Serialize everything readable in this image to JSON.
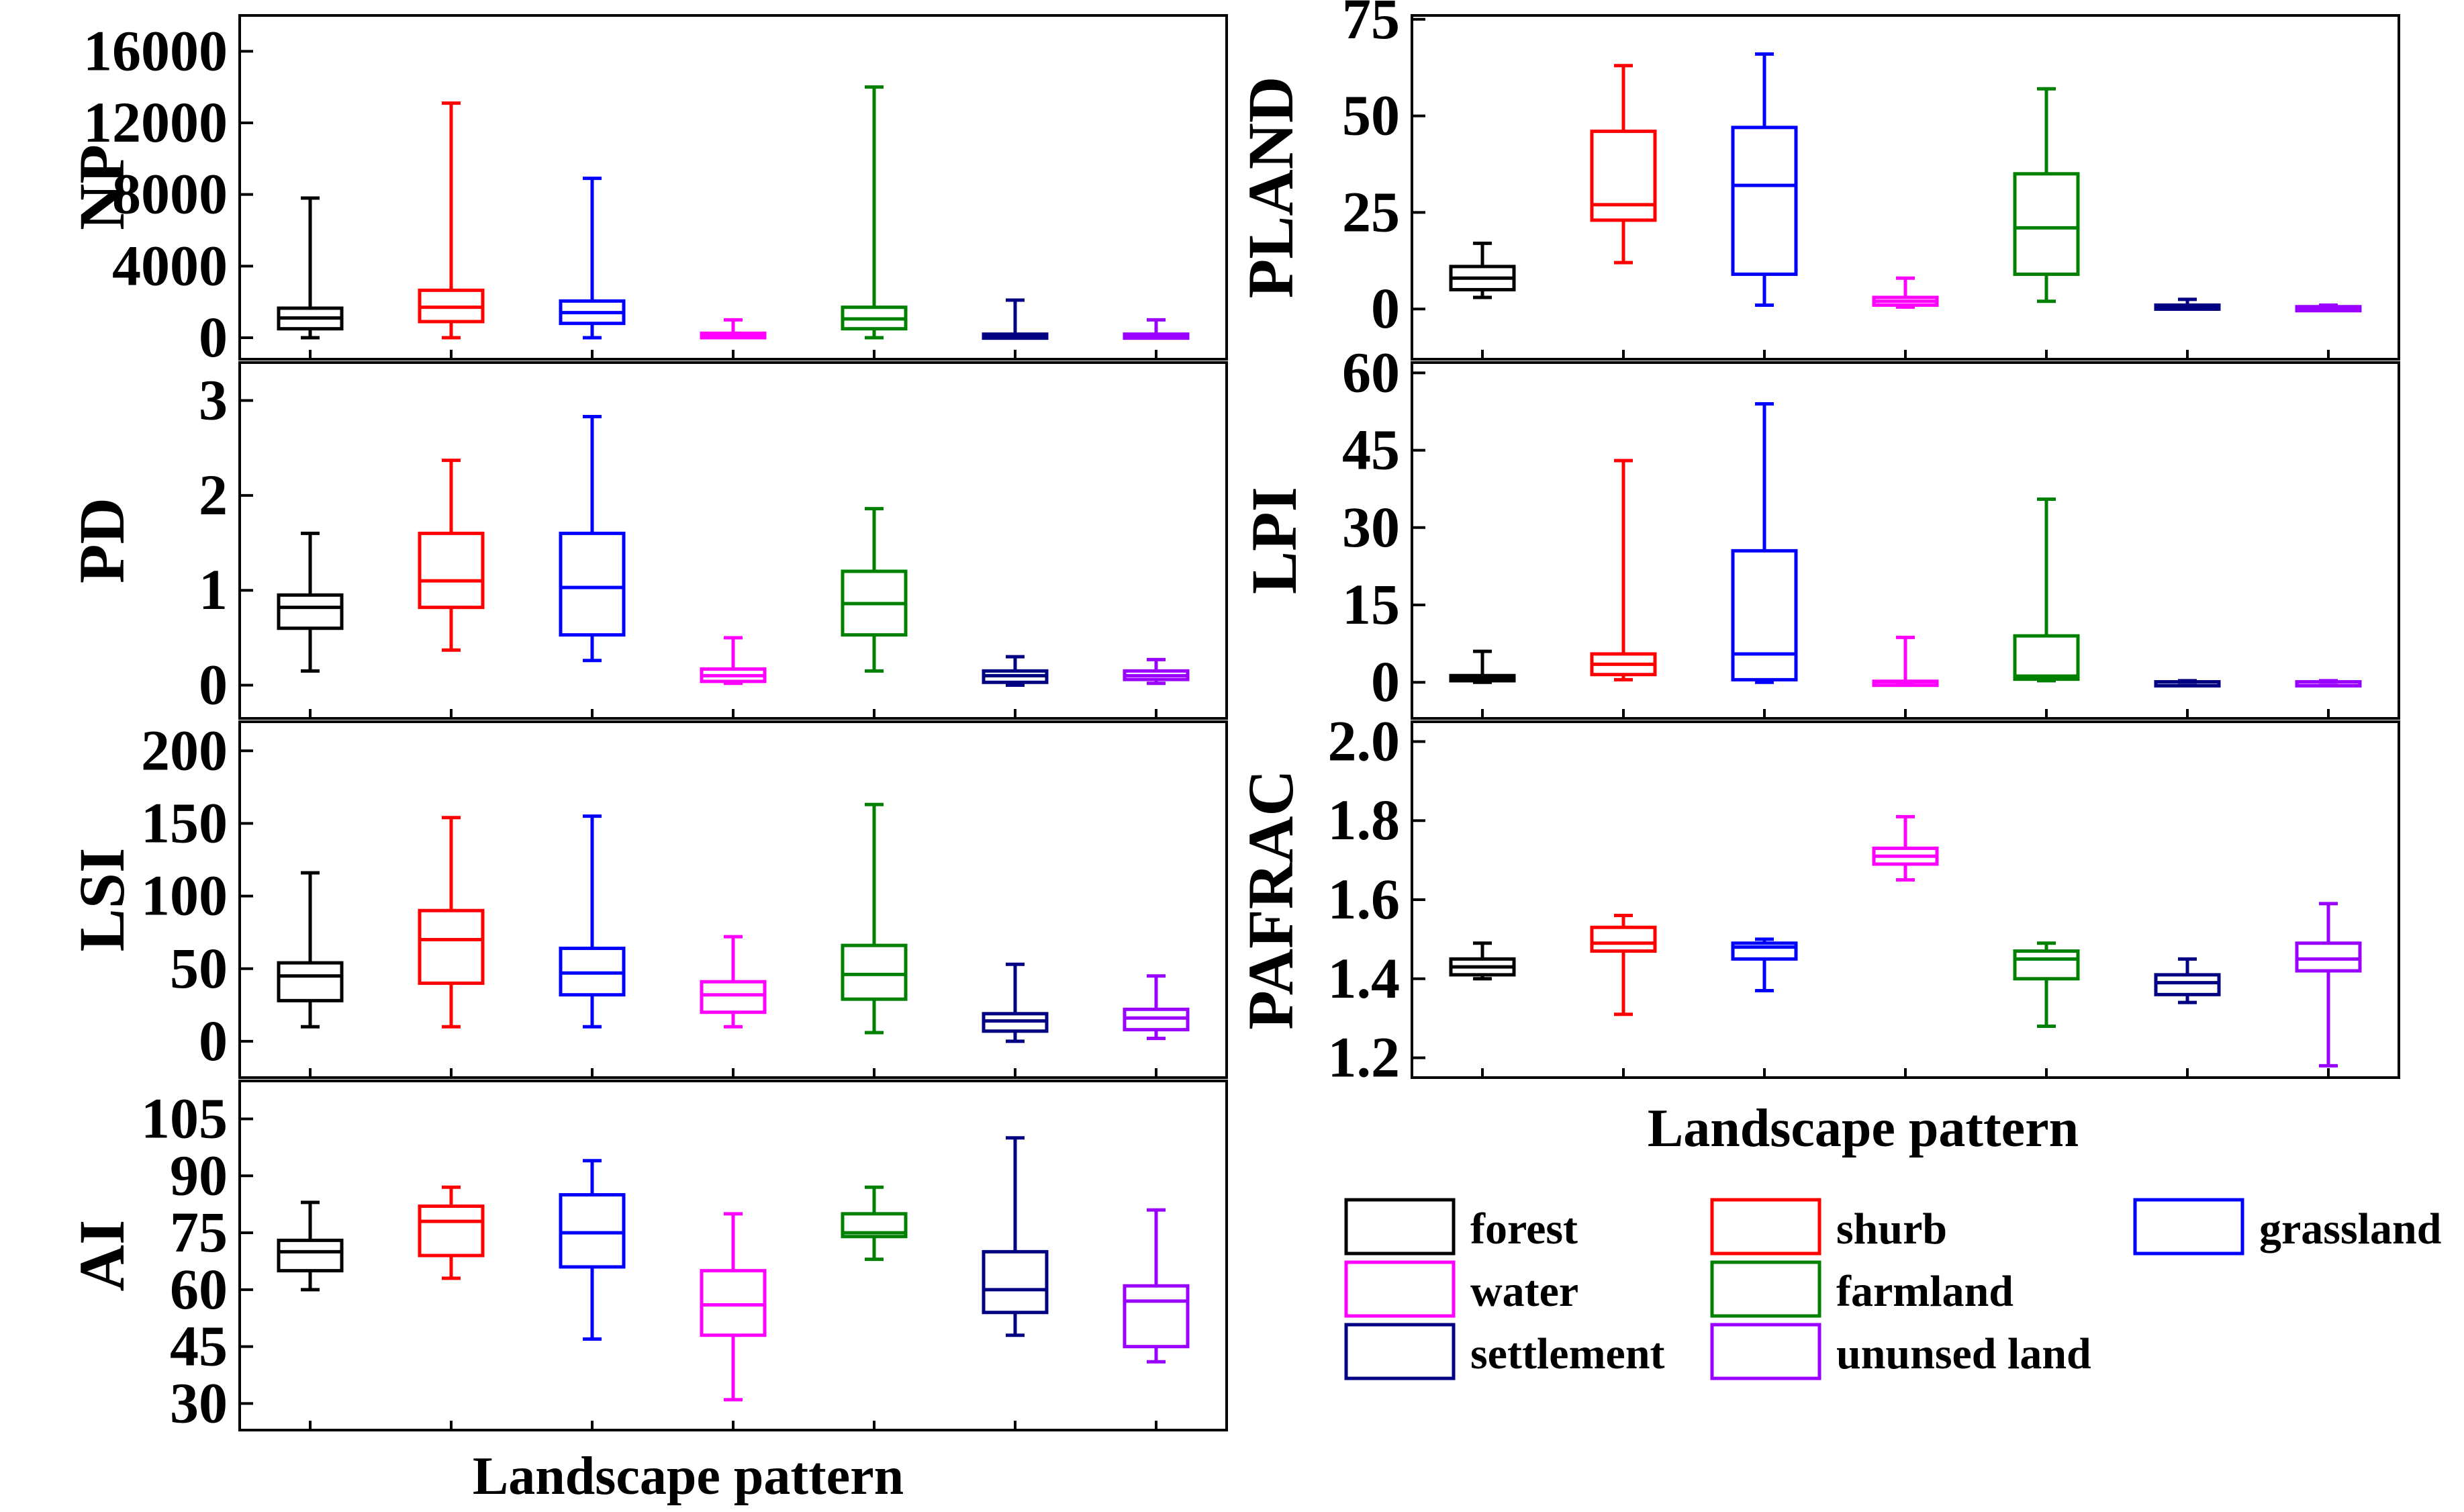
{
  "categories": [
    "forest",
    "shurb",
    "grassland",
    "water",
    "farmland",
    "settlement",
    "ununsed land"
  ],
  "colors": {
    "forest": "#000000",
    "shurb": "#ff0000",
    "grassland": "#0000ff",
    "water": "#ff00ff",
    "farmland": "#008000",
    "settlement": "#000080",
    "ununsed land": "#9900ff"
  },
  "legend": {
    "entries": [
      "forest",
      "shurb",
      "grassland",
      "water",
      "farmland",
      "settlement",
      "ununsed land"
    ]
  },
  "chart_data": [
    {
      "type": "box",
      "title": "",
      "ylabel": "NP",
      "xlabel": "",
      "ylim": [
        -1200,
        18000
      ],
      "yticks": [
        0,
        4000,
        8000,
        12000,
        16000
      ],
      "ytick_labels": [
        "0",
        "4000",
        "8000",
        "12000",
        "16000"
      ],
      "series": [
        {
          "name": "forest",
          "min": 0,
          "q1": 500,
          "median": 1100,
          "q3": 1650,
          "max": 7800
        },
        {
          "name": "shurb",
          "min": 0,
          "q1": 900,
          "median": 1700,
          "q3": 2650,
          "max": 13100
        },
        {
          "name": "grassland",
          "min": 0,
          "q1": 800,
          "median": 1400,
          "q3": 2050,
          "max": 8900
        },
        {
          "name": "water",
          "min": 0,
          "q1": 0,
          "median": 100,
          "q3": 250,
          "max": 1000
        },
        {
          "name": "farmland",
          "min": 0,
          "q1": 500,
          "median": 1050,
          "q3": 1700,
          "max": 14000
        },
        {
          "name": "settlement",
          "min": 0,
          "q1": 0,
          "median": 100,
          "q3": 200,
          "max": 2100
        },
        {
          "name": "ununsed land",
          "min": 0,
          "q1": 0,
          "median": 100,
          "q3": 200,
          "max": 1000
        }
      ]
    },
    {
      "type": "box",
      "title": "",
      "ylabel": "PLAND",
      "xlabel": "",
      "ylim": [
        -13,
        76
      ],
      "yticks": [
        0,
        25,
        50,
        75
      ],
      "ytick_labels": [
        "0",
        "25",
        "50",
        "75"
      ],
      "series": [
        {
          "name": "forest",
          "min": 3,
          "q1": 5,
          "median": 8,
          "q3": 11,
          "max": 17
        },
        {
          "name": "shurb",
          "min": 12,
          "q1": 23,
          "median": 27,
          "q3": 46,
          "max": 63
        },
        {
          "name": "grassland",
          "min": 1,
          "q1": 9,
          "median": 32,
          "q3": 47,
          "max": 66
        },
        {
          "name": "water",
          "min": 0.5,
          "q1": 1,
          "median": 2,
          "q3": 3,
          "max": 8
        },
        {
          "name": "farmland",
          "min": 2,
          "q1": 9,
          "median": 21,
          "q3": 35,
          "max": 57
        },
        {
          "name": "settlement",
          "min": 0,
          "q1": 0,
          "median": 0.5,
          "q3": 1,
          "max": 2.5
        },
        {
          "name": "ununsed land",
          "min": 0,
          "q1": 0,
          "median": 0.3,
          "q3": 0.6,
          "max": 1
        }
      ]
    },
    {
      "type": "box",
      "title": "",
      "ylabel": "PD",
      "xlabel": "",
      "ylim": [
        -0.35,
        3.4
      ],
      "yticks": [
        0,
        1,
        2,
        3
      ],
      "ytick_labels": [
        "0",
        "1",
        "2",
        "3"
      ],
      "series": [
        {
          "name": "forest",
          "min": 0.15,
          "q1": 0.6,
          "median": 0.82,
          "q3": 0.95,
          "max": 1.6
        },
        {
          "name": "shurb",
          "min": 0.37,
          "q1": 0.82,
          "median": 1.1,
          "q3": 1.6,
          "max": 2.37
        },
        {
          "name": "grassland",
          "min": 0.26,
          "q1": 0.53,
          "median": 1.03,
          "q3": 1.6,
          "max": 2.83
        },
        {
          "name": "water",
          "min": 0.02,
          "q1": 0.04,
          "median": 0.1,
          "q3": 0.17,
          "max": 0.5
        },
        {
          "name": "farmland",
          "min": 0.15,
          "q1": 0.53,
          "median": 0.86,
          "q3": 1.2,
          "max": 1.86
        },
        {
          "name": "settlement",
          "min": 0,
          "q1": 0.03,
          "median": 0.1,
          "q3": 0.15,
          "max": 0.3
        },
        {
          "name": "ununsed land",
          "min": 0.02,
          "q1": 0.06,
          "median": 0.1,
          "q3": 0.15,
          "max": 0.27
        }
      ]
    },
    {
      "type": "box",
      "title": "",
      "ylabel": "LPI",
      "xlabel": "",
      "ylim": [
        -7,
        62
      ],
      "yticks": [
        0,
        15,
        30,
        45,
        60
      ],
      "ytick_labels": [
        "0",
        "15",
        "30",
        "45",
        "60"
      ],
      "series": [
        {
          "name": "forest",
          "min": 0,
          "q1": 0.3,
          "median": 0.8,
          "q3": 1.3,
          "max": 6
        },
        {
          "name": "shurb",
          "min": 0.5,
          "q1": 1.5,
          "median": 3.5,
          "q3": 5.5,
          "max": 43
        },
        {
          "name": "grassland",
          "min": 0,
          "q1": 0.5,
          "median": 5.5,
          "q3": 25.5,
          "max": 54
        },
        {
          "name": "water",
          "min": 0,
          "q1": 0,
          "median": 0.1,
          "q3": 0.2,
          "max": 8.7
        },
        {
          "name": "farmland",
          "min": 0.3,
          "q1": 0.6,
          "median": 1.2,
          "q3": 9,
          "max": 35.5
        },
        {
          "name": "settlement",
          "min": 0,
          "q1": 0,
          "median": 0.05,
          "q3": 0.1,
          "max": 0.3
        },
        {
          "name": "ununsed land",
          "min": 0,
          "q1": 0,
          "median": 0.05,
          "q3": 0.1,
          "max": 0.3
        }
      ]
    },
    {
      "type": "box",
      "title": "",
      "ylabel": "LSI",
      "xlabel": "",
      "ylim": [
        -25,
        220
      ],
      "yticks": [
        0,
        50,
        100,
        150,
        200
      ],
      "ytick_labels": [
        "0",
        "50",
        "100",
        "150",
        "200"
      ],
      "series": [
        {
          "name": "forest",
          "min": 10,
          "q1": 28,
          "median": 45,
          "q3": 54,
          "max": 116
        },
        {
          "name": "shurb",
          "min": 10,
          "q1": 40,
          "median": 70,
          "q3": 90,
          "max": 154
        },
        {
          "name": "grassland",
          "min": 10,
          "q1": 32,
          "median": 47,
          "q3": 64,
          "max": 155
        },
        {
          "name": "water",
          "min": 10,
          "q1": 20,
          "median": 32,
          "q3": 41,
          "max": 72
        },
        {
          "name": "farmland",
          "min": 6,
          "q1": 29,
          "median": 46,
          "q3": 66,
          "max": 163
        },
        {
          "name": "settlement",
          "min": 0,
          "q1": 7,
          "median": 14,
          "q3": 19,
          "max": 53
        },
        {
          "name": "ununsed land",
          "min": 2,
          "q1": 8,
          "median": 16,
          "q3": 22,
          "max": 45
        }
      ]
    },
    {
      "type": "box",
      "title": "",
      "ylabel": "PAFRAC",
      "xlabel": "Landscape  pattern",
      "ylim": [
        1.15,
        2.05
      ],
      "yticks": [
        1.2,
        1.4,
        1.6,
        1.8,
        2.0
      ],
      "ytick_labels": [
        "1.2",
        "1.4",
        "1.6",
        "1.8",
        "2.0"
      ],
      "series": [
        {
          "name": "forest",
          "min": 1.4,
          "q1": 1.41,
          "median": 1.43,
          "q3": 1.45,
          "max": 1.49
        },
        {
          "name": "shurb",
          "min": 1.31,
          "q1": 1.47,
          "median": 1.49,
          "q3": 1.53,
          "max": 1.56
        },
        {
          "name": "grassland",
          "min": 1.37,
          "q1": 1.45,
          "median": 1.48,
          "q3": 1.49,
          "max": 1.5
        },
        {
          "name": "water",
          "min": 1.65,
          "q1": 1.69,
          "median": 1.71,
          "q3": 1.73,
          "max": 1.81
        },
        {
          "name": "farmland",
          "min": 1.28,
          "q1": 1.4,
          "median": 1.45,
          "q3": 1.47,
          "max": 1.49
        },
        {
          "name": "settlement",
          "min": 1.34,
          "q1": 1.36,
          "median": 1.39,
          "q3": 1.41,
          "max": 1.45
        },
        {
          "name": "ununsed land",
          "min": 1.18,
          "q1": 1.42,
          "median": 1.45,
          "q3": 1.49,
          "max": 1.59
        }
      ]
    },
    {
      "type": "box",
      "title": "",
      "ylabel": "AI",
      "xlabel": "Landscape  pattern",
      "ylim": [
        23,
        115
      ],
      "yticks": [
        30,
        45,
        60,
        75,
        90,
        105
      ],
      "ytick_labels": [
        "30",
        "45",
        "60",
        "75",
        "90",
        "105"
      ],
      "series": [
        {
          "name": "forest",
          "min": 60,
          "q1": 65,
          "median": 70,
          "q3": 73,
          "max": 83
        },
        {
          "name": "shurb",
          "min": 63,
          "q1": 69,
          "median": 78,
          "q3": 82,
          "max": 87
        },
        {
          "name": "grassland",
          "min": 47,
          "q1": 66,
          "median": 75,
          "q3": 85,
          "max": 94
        },
        {
          "name": "water",
          "min": 31,
          "q1": 48,
          "median": 56,
          "q3": 65,
          "max": 80
        },
        {
          "name": "farmland",
          "min": 68,
          "q1": 74,
          "median": 75,
          "q3": 80,
          "max": 87
        },
        {
          "name": "settlement",
          "min": 48,
          "q1": 54,
          "median": 60,
          "q3": 70,
          "max": 100
        },
        {
          "name": "ununsed land",
          "min": 41,
          "q1": 45,
          "median": 57,
          "q3": 61,
          "max": 81
        }
      ]
    }
  ]
}
